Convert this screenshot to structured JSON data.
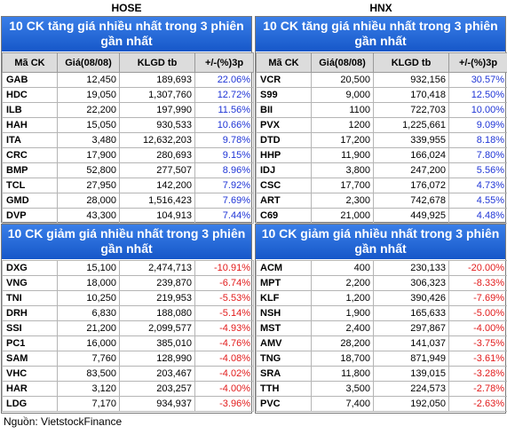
{
  "exchanges": {
    "hose": "HOSE",
    "hnx": "HNX"
  },
  "headers": [
    "Mã CK",
    "Giá(08/08)",
    "KLGD tb",
    "+/-(%)3p"
  ],
  "titles": {
    "up": "10 CK tăng giá nhiều nhất trong 3 phiên gần nhất",
    "down": "10 CK giảm giá nhiều nhất trong 3 phiên gần nhất"
  },
  "hose_up": [
    [
      "GAB",
      "12,450",
      "189,693",
      "22.06%"
    ],
    [
      "HDC",
      "19,050",
      "1,307,760",
      "12.72%"
    ],
    [
      "ILB",
      "22,200",
      "197,990",
      "11.56%"
    ],
    [
      "HAH",
      "15,050",
      "930,533",
      "10.66%"
    ],
    [
      "ITA",
      "3,480",
      "12,632,203",
      "9.78%"
    ],
    [
      "CRC",
      "17,900",
      "280,693",
      "9.15%"
    ],
    [
      "BMP",
      "52,800",
      "277,507",
      "8.96%"
    ],
    [
      "TCL",
      "27,950",
      "142,200",
      "7.92%"
    ],
    [
      "GMD",
      "28,000",
      "1,516,423",
      "7.69%"
    ],
    [
      "DVP",
      "43,300",
      "104,913",
      "7.44%"
    ]
  ],
  "hnx_up": [
    [
      "VCR",
      "20,500",
      "932,156",
      "30.57%"
    ],
    [
      "S99",
      "9,000",
      "170,418",
      "12.50%"
    ],
    [
      "BII",
      "1100",
      "722,703",
      "10.00%"
    ],
    [
      "PVX",
      "1200",
      "1,225,661",
      "9.09%"
    ],
    [
      "DTD",
      "17,200",
      "339,955",
      "8.18%"
    ],
    [
      "HHP",
      "11,900",
      "166,024",
      "7.80%"
    ],
    [
      "IDJ",
      "3,800",
      "247,200",
      "5.56%"
    ],
    [
      "CSC",
      "17,700",
      "176,072",
      "4.73%"
    ],
    [
      "ART",
      "2,300",
      "742,678",
      "4.55%"
    ],
    [
      "C69",
      "21,000",
      "449,925",
      "4.48%"
    ]
  ],
  "hose_down": [
    [
      "DXG",
      "15,100",
      "2,474,713",
      "-10.91%"
    ],
    [
      "VNG",
      "18,000",
      "239,870",
      "-6.74%"
    ],
    [
      "TNI",
      "10,250",
      "219,953",
      "-5.53%"
    ],
    [
      "DRH",
      "6,830",
      "188,080",
      "-5.14%"
    ],
    [
      "SSI",
      "21,200",
      "2,099,577",
      "-4.93%"
    ],
    [
      "PC1",
      "16,000",
      "385,010",
      "-4.76%"
    ],
    [
      "SAM",
      "7,760",
      "128,990",
      "-4.08%"
    ],
    [
      "VHC",
      "83,500",
      "203,467",
      "-4.02%"
    ],
    [
      "HAR",
      "3,120",
      "203,257",
      "-4.00%"
    ],
    [
      "LDG",
      "7,170",
      "934,937",
      "-3.96%"
    ]
  ],
  "hnx_down": [
    [
      "ACM",
      "400",
      "230,133",
      "-20.00%"
    ],
    [
      "MPT",
      "2,200",
      "306,323",
      "-8.33%"
    ],
    [
      "KLF",
      "1,200",
      "390,426",
      "-7.69%"
    ],
    [
      "NSH",
      "1,900",
      "165,633",
      "-5.00%"
    ],
    [
      "MST",
      "2,400",
      "297,867",
      "-4.00%"
    ],
    [
      "AMV",
      "28,200",
      "141,037",
      "-3.75%"
    ],
    [
      "TNG",
      "18,700",
      "871,949",
      "-3.61%"
    ],
    [
      "SRA",
      "11,800",
      "139,015",
      "-3.28%"
    ],
    [
      "TTH",
      "3,500",
      "224,573",
      "-2.78%"
    ],
    [
      "PVC",
      "7,400",
      "192,050",
      "-2.63%"
    ]
  ],
  "source": "Nguồn: VietstockFinance",
  "colors": {
    "header_blue": "#1f63d6",
    "positive": "#1f35d6",
    "negative": "#e21b1b"
  }
}
